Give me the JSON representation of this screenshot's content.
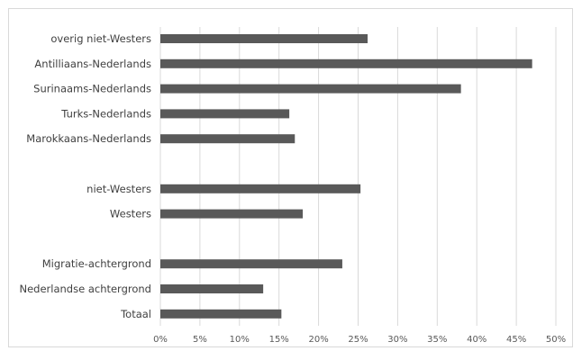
{
  "chart_data": {
    "type": "bar",
    "orientation": "horizontal",
    "categories": [
      "overig niet-Westers",
      "Antilliaans-Nederlands",
      "Surinaams-Nederlands",
      "Turks-Nederlands",
      "Marokkaans-Nederlands",
      "",
      "niet-Westers",
      "Westers",
      "",
      "Migratie-achtergrond",
      "Nederlandse achtergrond",
      "Totaal"
    ],
    "values": [
      26.2,
      47.0,
      38.0,
      16.3,
      17.0,
      null,
      25.3,
      18.0,
      null,
      23.0,
      13.0,
      15.3
    ],
    "xlim": [
      0,
      50
    ],
    "xticks": [
      "0%",
      "5%",
      "10%",
      "15%",
      "20%",
      "25%",
      "30%",
      "35%",
      "40%",
      "45%",
      "50%"
    ],
    "grid": true,
    "bar_color": "#595959",
    "grid_color": "#d9d9d9",
    "title": "",
    "xlabel": "",
    "ylabel": ""
  }
}
